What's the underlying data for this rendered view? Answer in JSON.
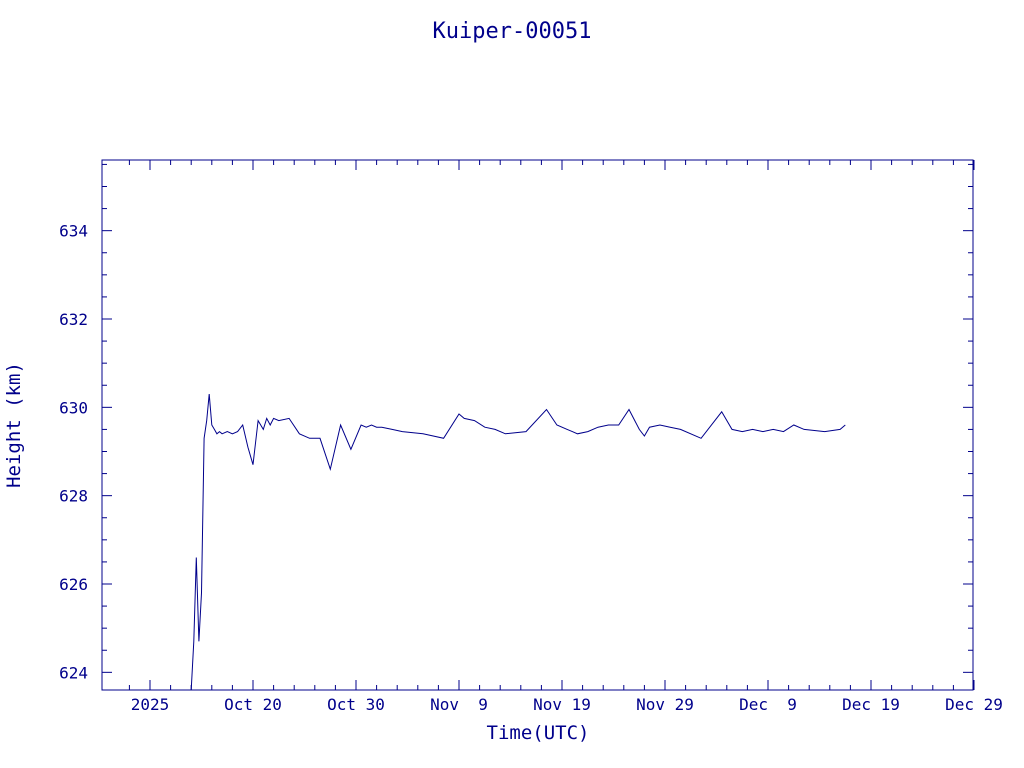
{
  "chart_data": {
    "type": "line",
    "title": "Kuiper-00051",
    "xlabel": "Time(UTC)",
    "ylabel": "Height (km)",
    "x_tick_labels": [
      "2025",
      "Oct 20",
      "Oct 30",
      "Nov  9",
      "Nov 19",
      "Nov 29",
      "Dec  9",
      "Dec 19",
      "Dec 29"
    ],
    "y_tick_labels": [
      "624",
      "626",
      "628",
      "630",
      "632",
      "634"
    ],
    "ylim": [
      623.6,
      635.6
    ],
    "grid": false,
    "line_color": "#00008b",
    "series": [
      {
        "x": [
          "2025-10-14",
          "2025-10-14",
          "2025-10-14",
          "2025-10-14",
          "2025-10-15",
          "2025-10-15",
          "2025-10-15",
          "2025-10-15",
          "2025-10-16",
          "2025-10-16",
          "2025-10-16",
          "2025-10-16",
          "2025-10-17",
          "2025-10-17",
          "2025-10-18",
          "2025-10-18",
          "2025-10-19",
          "2025-10-19",
          "2025-10-20",
          "2025-10-20",
          "2025-10-21",
          "2025-10-21",
          "2025-10-21",
          "2025-10-22",
          "2025-10-22",
          "2025-10-23",
          "2025-10-24",
          "2025-10-25",
          "2025-10-26",
          "2025-10-27",
          "2025-10-28",
          "2025-10-29",
          "2025-10-30",
          "2025-10-31",
          "2025-10-31",
          "2025-11-01",
          "2025-11-01",
          "2025-11-02",
          "2025-11-03",
          "2025-11-05",
          "2025-11-07",
          "2025-11-09",
          "2025-11-09",
          "2025-11-10",
          "2025-11-11",
          "2025-11-12",
          "2025-11-13",
          "2025-11-15",
          "2025-11-17",
          "2025-11-18",
          "2025-11-19",
          "2025-11-20",
          "2025-11-20",
          "2025-11-21",
          "2025-11-22",
          "2025-11-23",
          "2025-11-24",
          "2025-11-25",
          "2025-11-26",
          "2025-11-27",
          "2025-11-27",
          "2025-11-28",
          "2025-11-29",
          "2025-11-30",
          "2025-12-02",
          "2025-12-04",
          "2025-12-05",
          "2025-12-06",
          "2025-12-07",
          "2025-12-08",
          "2025-12-09",
          "2025-12-10",
          "2025-12-11",
          "2025-12-12",
          "2025-12-14",
          "2025-12-16",
          "2025-12-16"
        ],
        "y": [
          623.6,
          624.7,
          626.6,
          624.7,
          625.8,
          629.3,
          629.7,
          630.3,
          629.6,
          629.5,
          629.4,
          629.45,
          629.4,
          629.45,
          629.4,
          629.45,
          629.6,
          629.1,
          628.7,
          629.7,
          629.5,
          629.75,
          629.6,
          629.75,
          629.7,
          629.75,
          629.4,
          629.3,
          629.3,
          628.6,
          629.6,
          629.05,
          629.6,
          629.55,
          629.6,
          629.55,
          629.55,
          629.5,
          629.45,
          629.4,
          629.3,
          629.85,
          629.75,
          629.7,
          629.55,
          629.5,
          629.4,
          629.45,
          629.95,
          629.6,
          629.5,
          629.45,
          629.4,
          629.45,
          629.55,
          629.6,
          629.6,
          629.95,
          629.5,
          629.35,
          629.55,
          629.6,
          629.55,
          629.5,
          629.3,
          629.9,
          629.5,
          629.45,
          629.5,
          629.45,
          629.5,
          629.45,
          629.6,
          629.5,
          629.45,
          629.5,
          629.6
        ]
      }
    ]
  }
}
